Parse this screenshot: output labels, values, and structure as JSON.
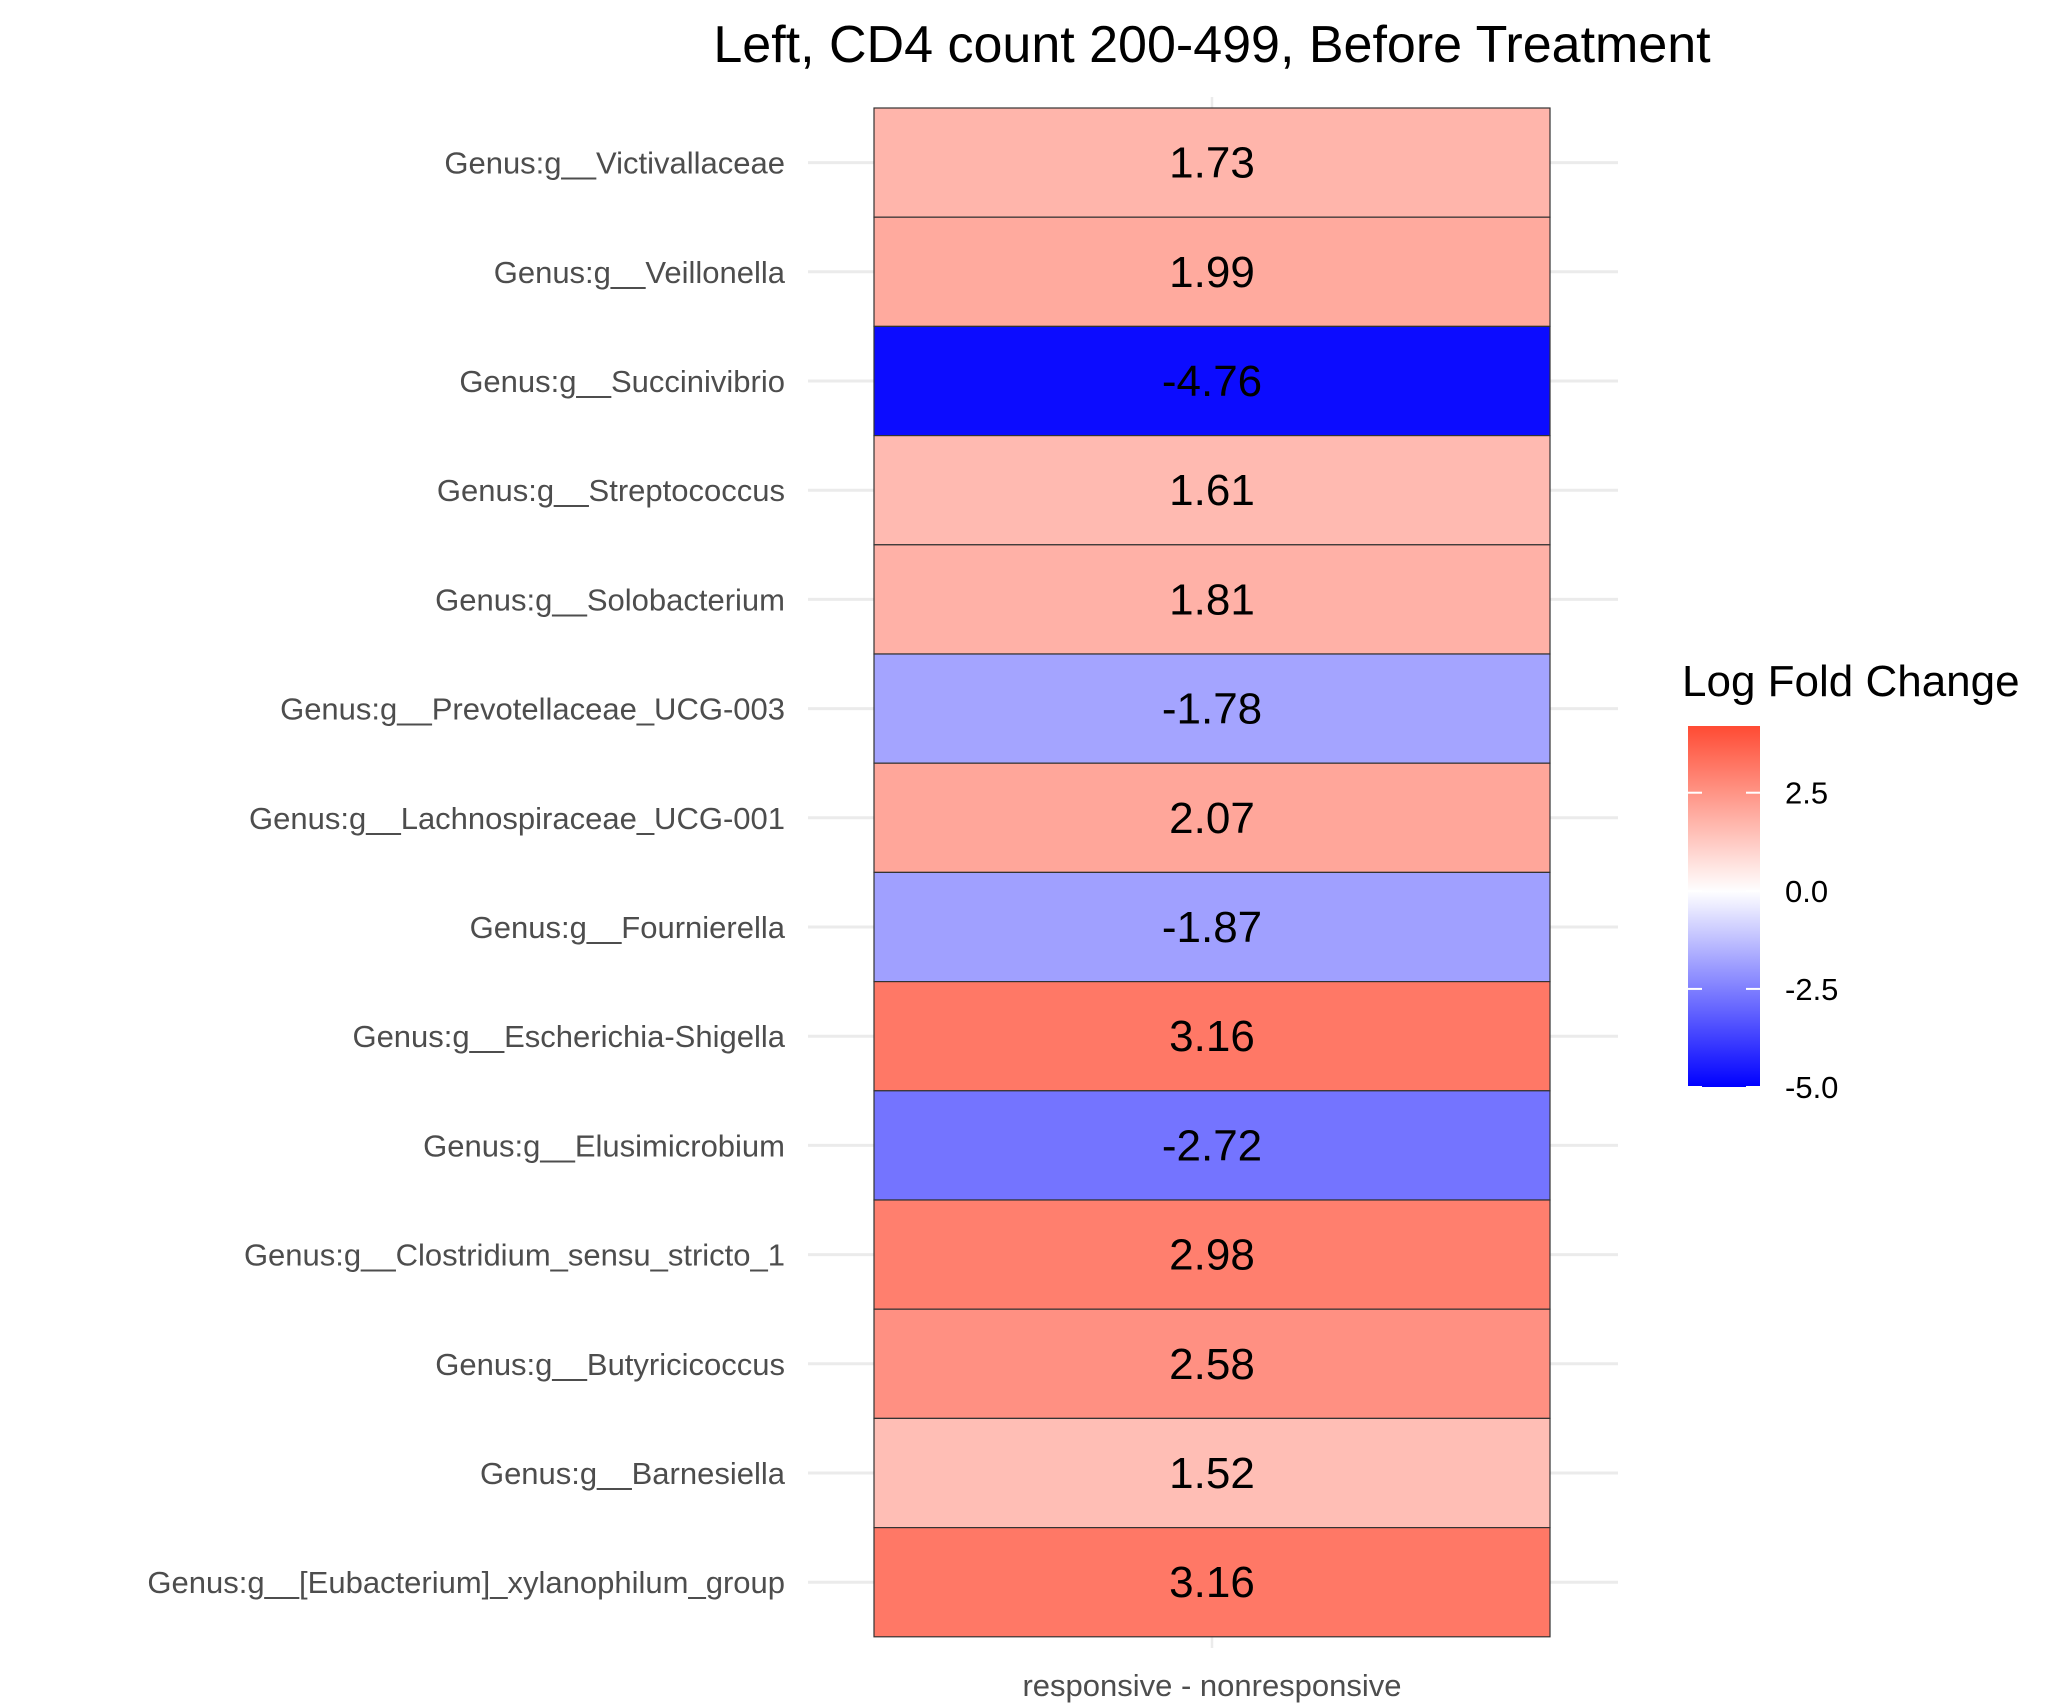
{
  "chart_data": {
    "type": "heatmap",
    "title": "Left, CD4 count 200-499, Before Treatment",
    "xlabel": "",
    "ylabel": "",
    "x_categories": [
      "responsive - nonresponsive"
    ],
    "y_categories": [
      "Genus:g__Victivallaceae",
      "Genus:g__Veillonella",
      "Genus:g__Succinivibrio",
      "Genus:g__Streptococcus",
      "Genus:g__Solobacterium",
      "Genus:g__Prevotellaceae_UCG-003",
      "Genus:g__Lachnospiraceae_UCG-001",
      "Genus:g__Fournierella",
      "Genus:g__Escherichia-Shigella",
      "Genus:g__Elusimicrobium",
      "Genus:g__Clostridium_sensu_stricto_1",
      "Genus:g__Butyricicoccus",
      "Genus:g__Barnesiella",
      "Genus:g__[Eubacterium]_xylanophilum_group"
    ],
    "values": [
      1.73,
      1.99,
      -4.76,
      1.61,
      1.81,
      -1.78,
      2.07,
      -1.87,
      3.16,
      -2.72,
      2.98,
      2.58,
      1.52,
      3.16
    ],
    "value_labels": [
      "1.73",
      "1.99",
      "-4.76",
      "1.61",
      "1.81",
      "-1.78",
      "2.07",
      "-1.87",
      "3.16",
      "-2.72",
      "2.98",
      "2.58",
      "1.52",
      "3.16"
    ],
    "legend": {
      "title": "Log Fold Change",
      "ticks": [
        2.5,
        0.0,
        -2.5,
        -5.0
      ],
      "tick_labels": [
        "2.5",
        "0.0",
        "-2.5",
        "-5.0"
      ],
      "range": [
        -5.0,
        4.2
      ],
      "low_color": "#0000ff",
      "mid_color": "#ffffff",
      "high_color": "#ff4b33",
      "placement": "right"
    },
    "grid": true
  }
}
